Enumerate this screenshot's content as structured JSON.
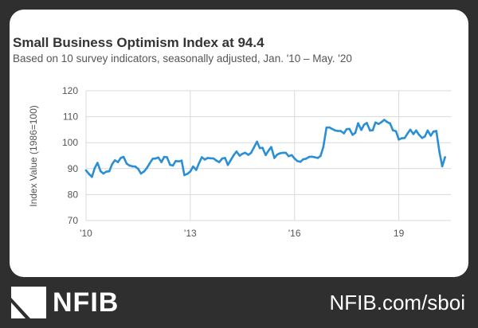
{
  "colors": {
    "background": "#2f2f2f",
    "card": "#ffffff",
    "line": "#2b8fd6",
    "grid": "#d9d9d9",
    "text": "#333333"
  },
  "footer": {
    "brand": "NFIB",
    "logo_icon": "nfib-flag-logo-icon",
    "url": "NFIB.com/sboi"
  },
  "chart_data": {
    "type": "line",
    "title": "Small Business Optimism Index at 94.4",
    "subtitle": "Based on 10 survey indicators, seasonally adjusted, Jan. '10 – May. '20",
    "ylabel": "Index Value (1986=100)",
    "xlabel": "",
    "ylim": [
      70,
      120
    ],
    "yticks": [
      70,
      80,
      90,
      100,
      110,
      120
    ],
    "xlim": [
      2010.0,
      2020.5
    ],
    "xticks": [
      {
        "label": "'10",
        "value": 2010
      },
      {
        "label": "'13",
        "value": 2013
      },
      {
        "label": "'16",
        "value": 2016
      },
      {
        "label": "19",
        "value": 2019
      }
    ],
    "grid": true,
    "series": [
      {
        "x": [
          2010.0,
          2010.08,
          2010.17,
          2010.25,
          2010.33,
          2010.42,
          2010.5,
          2010.58,
          2010.67,
          2010.75,
          2010.83,
          2010.92,
          2011.0,
          2011.08,
          2011.17,
          2011.25,
          2011.33,
          2011.42,
          2011.5,
          2011.58,
          2011.67,
          2011.75,
          2011.83,
          2011.92,
          2012.0,
          2012.08,
          2012.17,
          2012.25,
          2012.33,
          2012.42,
          2012.5,
          2012.58,
          2012.67,
          2012.75,
          2012.83,
          2012.92,
          2013.0,
          2013.08,
          2013.17,
          2013.25,
          2013.33,
          2013.42,
          2013.5,
          2013.58,
          2013.67,
          2013.75,
          2013.83,
          2013.92,
          2014.0,
          2014.08,
          2014.17,
          2014.25,
          2014.33,
          2014.42,
          2014.5,
          2014.58,
          2014.67,
          2014.75,
          2014.83,
          2014.92,
          2015.0,
          2015.08,
          2015.17,
          2015.25,
          2015.33,
          2015.42,
          2015.5,
          2015.58,
          2015.67,
          2015.75,
          2015.83,
          2015.92,
          2016.0,
          2016.08,
          2016.17,
          2016.25,
          2016.33,
          2016.42,
          2016.5,
          2016.58,
          2016.67,
          2016.75,
          2016.83,
          2016.92,
          2017.0,
          2017.08,
          2017.17,
          2017.25,
          2017.33,
          2017.42,
          2017.5,
          2017.58,
          2017.67,
          2017.75,
          2017.83,
          2017.92,
          2018.0,
          2018.08,
          2018.17,
          2018.25,
          2018.33,
          2018.42,
          2018.5,
          2018.58,
          2018.67,
          2018.75,
          2018.83,
          2018.92,
          2019.0,
          2019.08,
          2019.17,
          2019.25,
          2019.33,
          2019.42,
          2019.5,
          2019.58,
          2019.67,
          2019.75,
          2019.83,
          2019.92,
          2020.0,
          2020.08,
          2020.17,
          2020.25,
          2020.33
        ],
        "y": [
          89.3,
          88.0,
          86.8,
          90.2,
          92.2,
          89.0,
          88.1,
          88.8,
          89.0,
          91.7,
          93.2,
          92.5,
          94.1,
          94.5,
          91.9,
          91.2,
          90.9,
          90.8,
          89.9,
          88.1,
          88.9,
          90.2,
          92.0,
          93.8,
          93.9,
          94.3,
          92.5,
          94.5,
          94.4,
          91.4,
          91.2,
          92.9,
          92.8,
          93.1,
          87.5,
          88.0,
          88.9,
          90.8,
          89.5,
          92.1,
          94.4,
          93.5,
          94.1,
          94.0,
          93.9,
          93.1,
          92.5,
          93.9,
          94.1,
          91.4,
          93.4,
          95.2,
          96.6,
          95.0,
          95.7,
          96.1,
          95.3,
          96.1,
          98.1,
          100.4,
          97.9,
          98.0,
          95.2,
          96.9,
          98.3,
          94.1,
          95.4,
          95.9,
          96.1,
          96.1,
          94.8,
          95.2,
          93.9,
          92.9,
          92.6,
          93.6,
          93.8,
          94.5,
          94.6,
          94.4,
          94.1,
          94.9,
          98.4,
          105.8,
          105.9,
          105.3,
          104.7,
          104.5,
          104.5,
          103.6,
          105.2,
          105.3,
          103.0,
          103.8,
          107.5,
          104.9,
          106.9,
          107.6,
          104.7,
          104.8,
          107.8,
          107.2,
          107.9,
          108.8,
          107.9,
          107.4,
          104.8,
          104.4,
          101.2,
          101.7,
          101.8,
          103.5,
          105.0,
          103.3,
          104.7,
          103.1,
          101.8,
          102.4,
          104.7,
          102.7,
          104.3,
          104.5,
          96.4,
          90.9,
          94.4
        ]
      }
    ]
  }
}
